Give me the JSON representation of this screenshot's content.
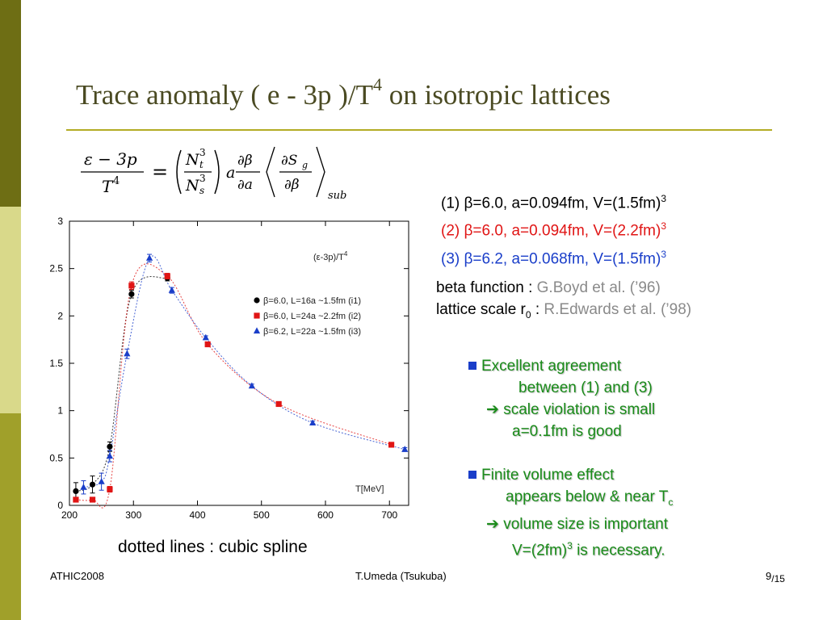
{
  "slide": {
    "title": "Trace anomaly   ( e - 3p )/T",
    "title_sup": "4",
    "title_tail": " on isotropic lattices",
    "params": [
      {
        "text": "(1) β=6.0, a=0.094fm, V=(1.5fm)",
        "sup": "3",
        "color": "#000000"
      },
      {
        "text": "(2) β=6.0, a=0.094fm, V=(2.2fm)",
        "sup": "3",
        "color": "#e01515"
      },
      {
        "text": "(3) β=6.2, a=0.068fm, V=(1.5fm)",
        "sup": "3",
        "color": "#1a3ec9"
      }
    ],
    "refs": {
      "beta_label": "beta function  : ",
      "beta_ref": "G.Boyd et al. (’96)",
      "scale_label": "lattice scale r",
      "scale_sub": "0",
      "scale_colon": " : ",
      "scale_ref": "R.Edwards et al. (’98)"
    },
    "bullet1": {
      "line1": "Excellent agreement",
      "line2": "between (1) and (3)",
      "line3": "➔ scale violation is small",
      "line4": "a=0.1fm is good"
    },
    "bullet2": {
      "line1": "Finite volume effect",
      "line2": "appears below & near T",
      "line2_sub": "c",
      "line3": "➔ volume size is important",
      "line4_a": "V=(2fm)",
      "line4_sup": "3",
      "line4_b": " is necessary."
    },
    "caption": "dotted lines : cubic spline",
    "footer": {
      "left": "ATHIC2008",
      "center": "T.Umeda (Tsukuba)",
      "page": "9",
      "total": "/15"
    },
    "formula": {
      "lhs_num": "ε − 3p",
      "lhs_den": "T",
      "lhs_den_sup": "4",
      "eq": "=",
      "r_num": "N",
      "r_num_sub": "t",
      "r_num_sup": "3",
      "r_den": "N",
      "r_den_sub": "s",
      "r_den_sup": "3",
      "a": "a",
      "d_num": "∂β",
      "d_den": "∂a",
      "s_num": "∂S",
      "s_num_sub": "g",
      "s_den": "∂β",
      "sub": "sub"
    }
  },
  "colors": {
    "olive": "#a0a02a",
    "olive_dark": "#6e6e14",
    "olive_light": "#d9d98a",
    "red": "#e01515",
    "blue": "#1a3ec9",
    "green": "#1a8c1a"
  },
  "chart_data": {
    "type": "scatter",
    "inset_label": "(ε-3p)/T",
    "inset_label_sup": "4",
    "xlabel": "T[MeV]",
    "xlim": [
      200,
      730
    ],
    "ylim": [
      0,
      3
    ],
    "xticks": [
      200,
      300,
      400,
      500,
      600,
      700
    ],
    "yticks": [
      0,
      0.5,
      1,
      1.5,
      2,
      2.5,
      3
    ],
    "grid": false,
    "legend_position": "right",
    "series": [
      {
        "name": "β=6.0, L=16a ~1.5fm (i1)",
        "marker": "circle",
        "color": "#000000",
        "x": [
          210,
          236,
          263,
          297,
          353
        ],
        "y": [
          0.15,
          0.22,
          0.62,
          2.23,
          2.4
        ],
        "err": [
          0.09,
          0.09,
          0.05,
          0.04,
          0.03
        ]
      },
      {
        "name": "β=6.0, L=24a ~2.2fm (i2)",
        "marker": "square",
        "color": "#e01515",
        "x": [
          210,
          236,
          263,
          297,
          353,
          416,
          527,
          703
        ],
        "y": [
          0.06,
          0.06,
          0.17,
          2.32,
          2.42,
          1.7,
          1.07,
          0.64
        ],
        "err": [
          0.02,
          0.02,
          0.03,
          0.04,
          0.03,
          0.02,
          0.02,
          0.02
        ]
      },
      {
        "name": "β=6.2, L=22a ~1.5fm (i3)",
        "marker": "triangle",
        "color": "#1a3ec9",
        "x": [
          222,
          250,
          263,
          290,
          325,
          360,
          413,
          485,
          580,
          724
        ],
        "y": [
          0.19,
          0.25,
          0.52,
          1.6,
          2.61,
          2.27,
          1.77,
          1.26,
          0.87,
          0.59
        ],
        "err": [
          0.07,
          0.09,
          0.06,
          0.05,
          0.04,
          0.03,
          0.02,
          0.02,
          0.02,
          0.02
        ]
      }
    ]
  }
}
